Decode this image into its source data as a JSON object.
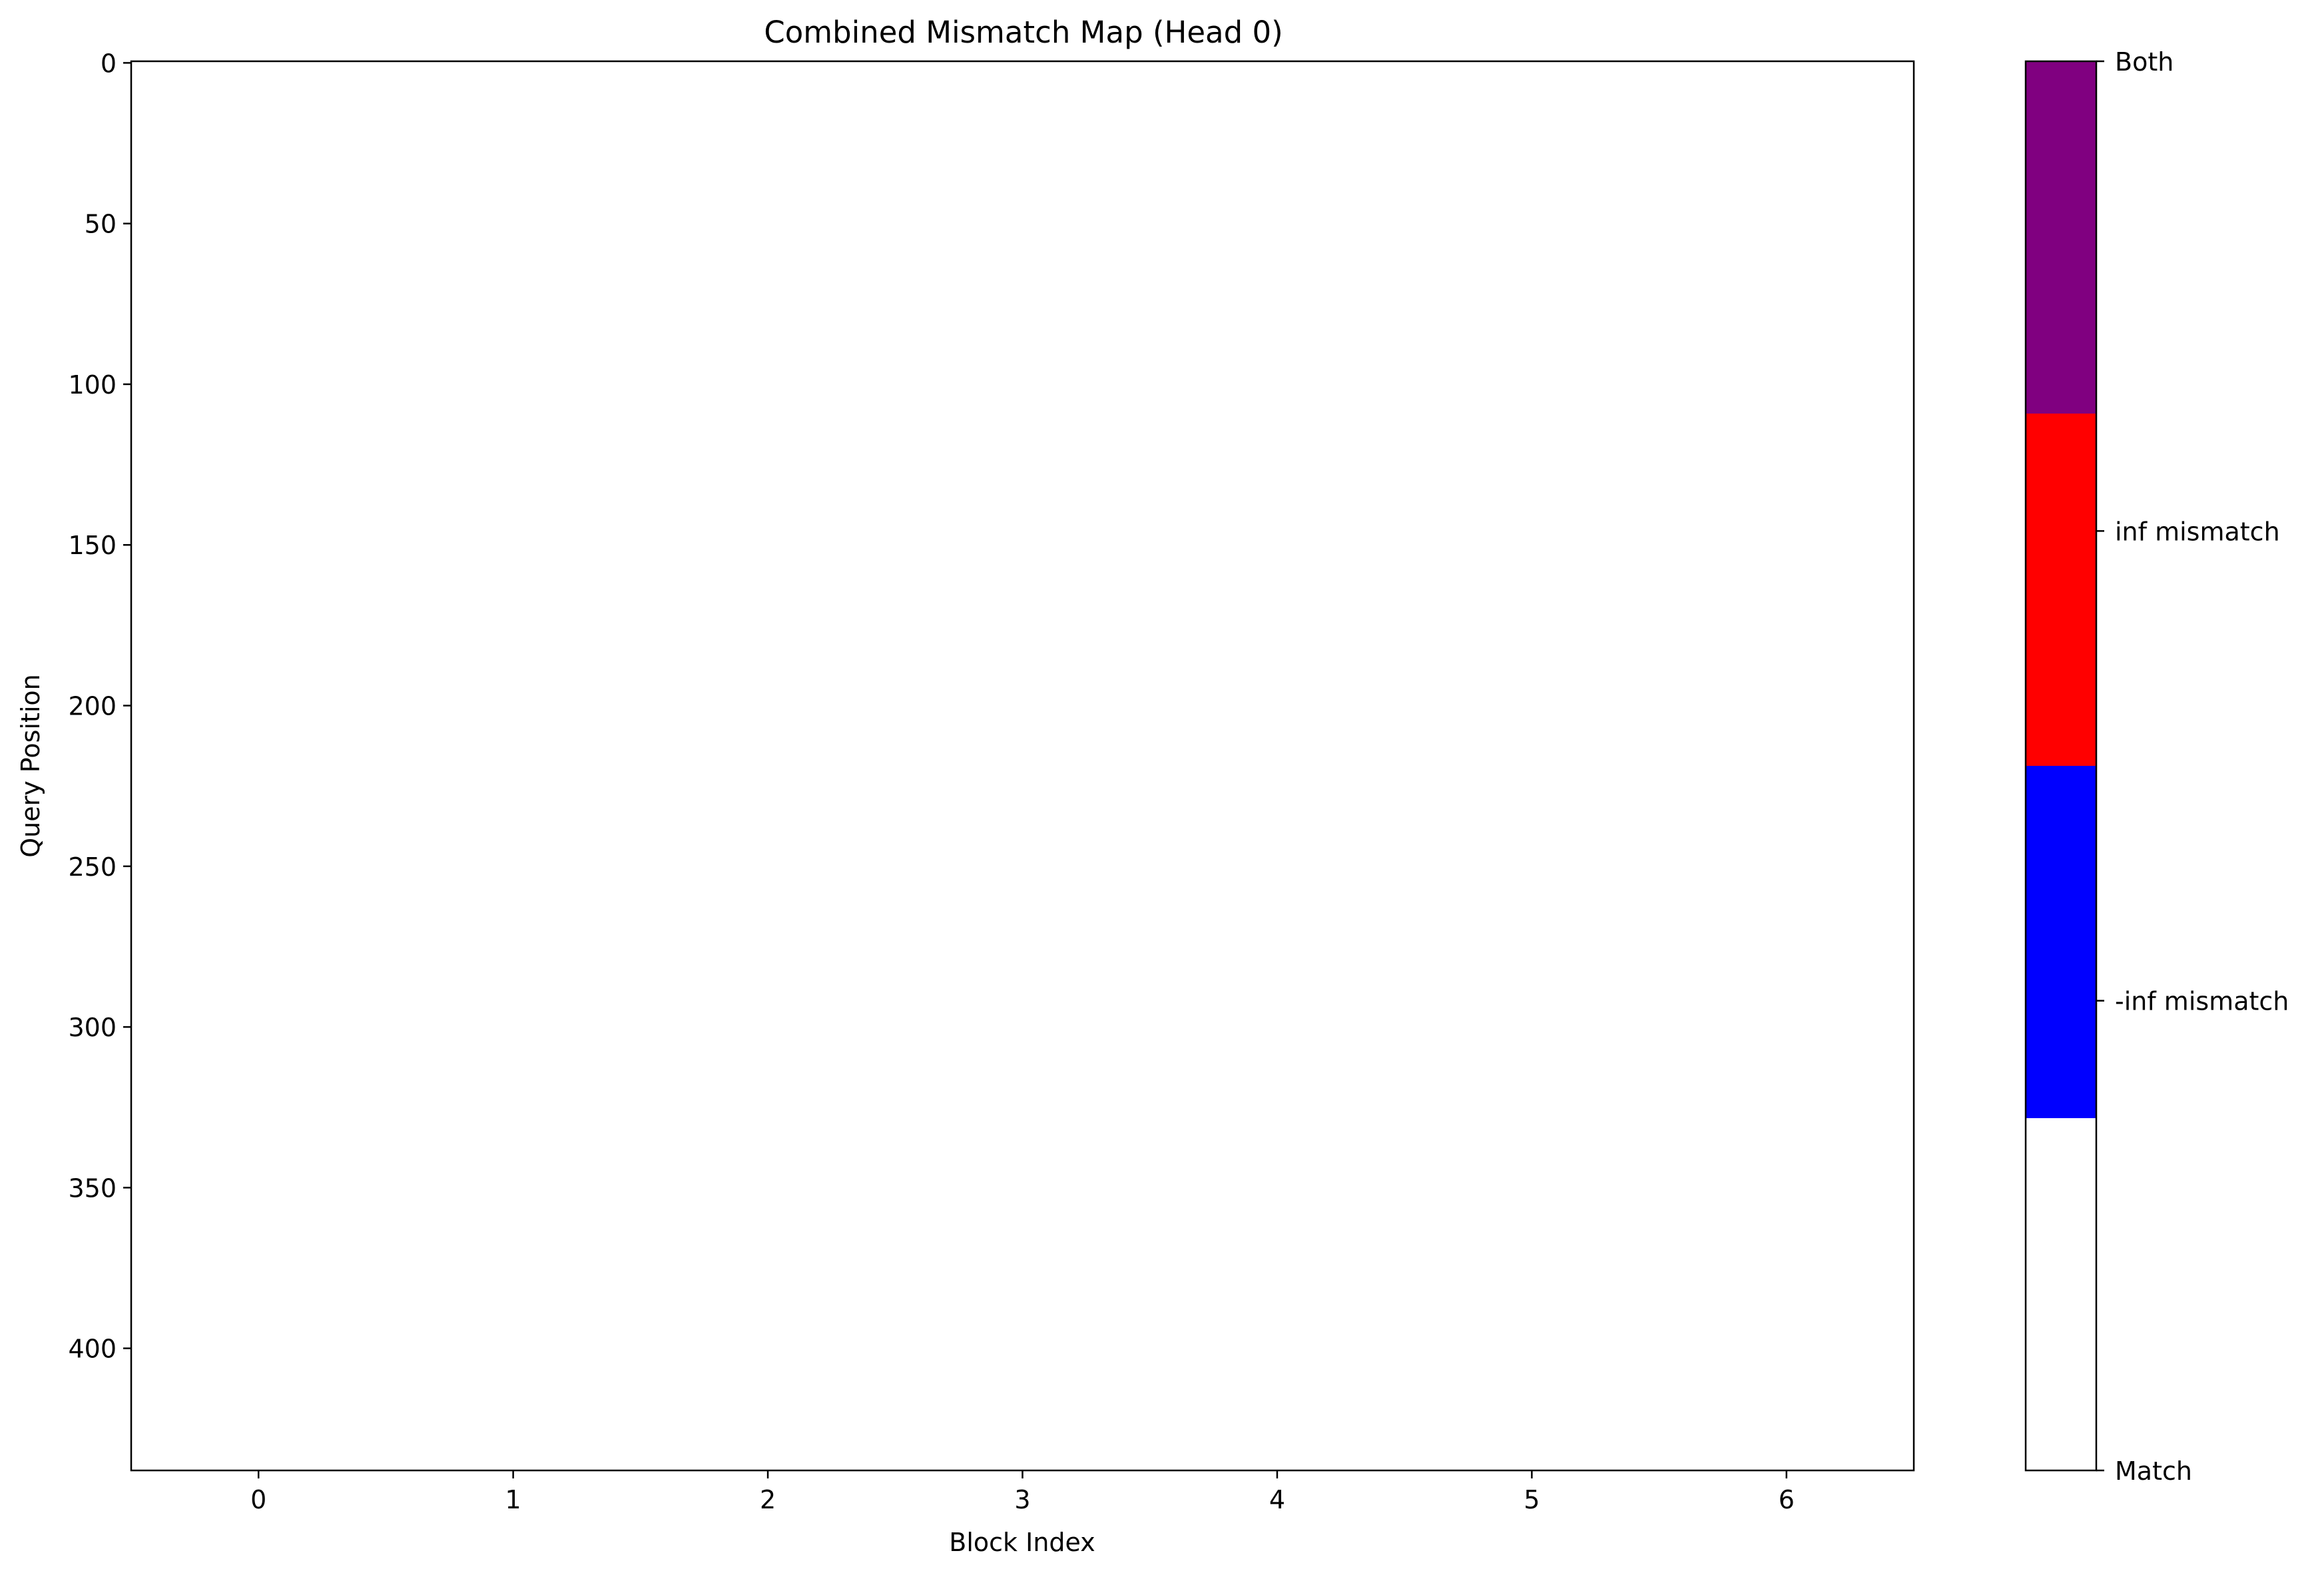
{
  "chart_data": {
    "type": "heatmap",
    "title": "Combined Mismatch Map (Head 0)",
    "xlabel": "Block Index",
    "ylabel": "Query Position",
    "x_categories": [
      0,
      1,
      2,
      3,
      4,
      5,
      6
    ],
    "x_ticks": [
      "0",
      "1",
      "2",
      "3",
      "4",
      "5",
      "6"
    ],
    "xlim": [
      -0.5,
      6.5
    ],
    "y_ticks": [
      "0",
      "50",
      "100",
      "150",
      "200",
      "250",
      "300",
      "350",
      "400"
    ],
    "ylim": [
      -0.5,
      438
    ],
    "y_inverted": true,
    "grid": false,
    "values": "all cells = 0 (Match)",
    "colorbar": {
      "categories": [
        {
          "label": "Match",
          "value": 0,
          "color": "#ffffff"
        },
        {
          "label": "-inf mismatch",
          "value": 1,
          "color": "#0000ff"
        },
        {
          "label": "inf mismatch",
          "value": 2,
          "color": "#ff0000"
        },
        {
          "label": "Both",
          "value": 3,
          "color": "#800080"
        }
      ],
      "range": [
        0,
        3
      ],
      "position": "right"
    }
  }
}
